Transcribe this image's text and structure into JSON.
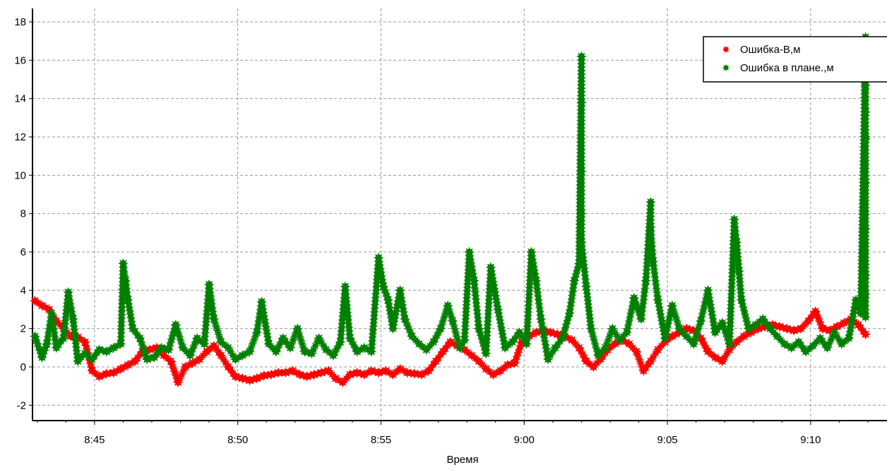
{
  "chart_data": {
    "type": "scatter",
    "title": "",
    "xlabel": "Время",
    "ylabel": "",
    "x_unit": "time (h:mm)",
    "xlim": [
      "8:42:50",
      "9:12:40"
    ],
    "ylim": [
      -2.8,
      18.7
    ],
    "x_ticks": [
      "8:45",
      "8:50",
      "8:55",
      "9:00",
      "9:05",
      "9:10"
    ],
    "y_ticks": [
      -2,
      0,
      2,
      4,
      6,
      8,
      10,
      12,
      14,
      16,
      18
    ],
    "grid": true,
    "legend": "top-right",
    "series": [
      {
        "name": "Ошибка-В,м",
        "color": "#ff0000",
        "points": [
          [
            "8:42:55",
            3.45
          ],
          [
            "8:43:10",
            3.2
          ],
          [
            "8:43:25",
            3.0
          ],
          [
            "8:43:40",
            2.4
          ],
          [
            "8:43:55",
            2.0
          ],
          [
            "8:44:10",
            1.6
          ],
          [
            "8:44:25",
            1.55
          ],
          [
            "8:44:40",
            1.3
          ],
          [
            "8:44:55",
            -0.2
          ],
          [
            "8:45:10",
            -0.5
          ],
          [
            "8:45:25",
            -0.35
          ],
          [
            "8:45:40",
            -0.3
          ],
          [
            "8:45:55",
            -0.1
          ],
          [
            "8:46:10",
            0.1
          ],
          [
            "8:46:25",
            0.3
          ],
          [
            "8:46:40",
            0.8
          ],
          [
            "8:46:55",
            0.9
          ],
          [
            "8:47:10",
            1.0
          ],
          [
            "8:47:25",
            0.6
          ],
          [
            "8:47:40",
            0.3
          ],
          [
            "8:47:55",
            -0.8
          ],
          [
            "8:48:10",
            0.0
          ],
          [
            "8:48:25",
            0.2
          ],
          [
            "8:48:40",
            0.4
          ],
          [
            "8:48:55",
            0.8
          ],
          [
            "8:49:10",
            1.1
          ],
          [
            "8:49:25",
            0.6
          ],
          [
            "8:49:40",
            0.0
          ],
          [
            "8:49:55",
            -0.5
          ],
          [
            "8:50:10",
            -0.6
          ],
          [
            "8:50:25",
            -0.7
          ],
          [
            "8:50:40",
            -0.6
          ],
          [
            "8:50:55",
            -0.45
          ],
          [
            "8:51:10",
            -0.4
          ],
          [
            "8:51:25",
            -0.3
          ],
          [
            "8:51:40",
            -0.3
          ],
          [
            "8:51:55",
            -0.2
          ],
          [
            "8:52:10",
            -0.4
          ],
          [
            "8:52:25",
            -0.5
          ],
          [
            "8:52:40",
            -0.4
          ],
          [
            "8:52:55",
            -0.3
          ],
          [
            "8:53:10",
            -0.2
          ],
          [
            "8:53:25",
            -0.6
          ],
          [
            "8:53:40",
            -0.8
          ],
          [
            "8:53:55",
            -0.4
          ],
          [
            "8:54:10",
            -0.3
          ],
          [
            "8:54:25",
            -0.4
          ],
          [
            "8:54:40",
            -0.2
          ],
          [
            "8:54:55",
            -0.3
          ],
          [
            "8:55:10",
            -0.2
          ],
          [
            "8:55:25",
            -0.4
          ],
          [
            "8:55:40",
            -0.1
          ],
          [
            "8:55:55",
            -0.3
          ],
          [
            "8:56:10",
            -0.35
          ],
          [
            "8:56:25",
            -0.4
          ],
          [
            "8:56:40",
            -0.2
          ],
          [
            "8:56:55",
            0.3
          ],
          [
            "8:57:10",
            0.8
          ],
          [
            "8:57:25",
            1.3
          ],
          [
            "8:57:40",
            1.1
          ],
          [
            "8:57:55",
            0.9
          ],
          [
            "8:58:10",
            0.6
          ],
          [
            "8:58:25",
            0.3
          ],
          [
            "8:58:40",
            -0.1
          ],
          [
            "8:58:55",
            -0.4
          ],
          [
            "8:59:10",
            -0.2
          ],
          [
            "8:59:25",
            0.1
          ],
          [
            "8:59:40",
            0.2
          ],
          [
            "8:59:55",
            1.3
          ],
          [
            "9:00:10",
            1.6
          ],
          [
            "9:00:25",
            1.8
          ],
          [
            "9:00:40",
            1.9
          ],
          [
            "9:00:55",
            1.8
          ],
          [
            "9:01:10",
            1.7
          ],
          [
            "9:01:25",
            1.6
          ],
          [
            "9:01:40",
            1.4
          ],
          [
            "9:01:55",
            1.0
          ],
          [
            "9:02:10",
            0.3
          ],
          [
            "9:02:25",
            0.0
          ],
          [
            "9:02:40",
            0.4
          ],
          [
            "9:02:55",
            0.9
          ],
          [
            "9:03:10",
            1.2
          ],
          [
            "9:03:25",
            1.4
          ],
          [
            "9:03:40",
            1.2
          ],
          [
            "9:03:55",
            0.8
          ],
          [
            "9:04:10",
            -0.2
          ],
          [
            "9:04:25",
            0.3
          ],
          [
            "9:04:40",
            0.9
          ],
          [
            "9:04:55",
            1.3
          ],
          [
            "9:05:10",
            1.6
          ],
          [
            "9:05:25",
            1.8
          ],
          [
            "9:05:40",
            2.0
          ],
          [
            "9:05:55",
            1.9
          ],
          [
            "9:06:10",
            1.5
          ],
          [
            "9:06:25",
            0.8
          ],
          [
            "9:06:40",
            0.5
          ],
          [
            "9:06:55",
            0.3
          ],
          [
            "9:07:10",
            0.9
          ],
          [
            "9:07:25",
            1.3
          ],
          [
            "9:07:40",
            1.6
          ],
          [
            "9:07:55",
            1.8
          ],
          [
            "9:08:10",
            2.0
          ],
          [
            "9:08:25",
            2.1
          ],
          [
            "9:08:40",
            2.2
          ],
          [
            "9:08:55",
            2.1
          ],
          [
            "9:09:10",
            2.0
          ],
          [
            "9:09:25",
            1.9
          ],
          [
            "9:09:40",
            2.0
          ],
          [
            "9:09:55",
            2.4
          ],
          [
            "9:10:10",
            2.9
          ],
          [
            "9:10:25",
            2.0
          ],
          [
            "9:10:40",
            1.9
          ],
          [
            "9:10:55",
            2.1
          ],
          [
            "9:11:10",
            2.3
          ],
          [
            "9:11:25",
            2.5
          ],
          [
            "9:11:40",
            2.2
          ],
          [
            "9:11:55",
            1.7
          ]
        ]
      },
      {
        "name": "Ошибка в плане.,м",
        "color": "#008000",
        "points": [
          [
            "8:42:55",
            1.6
          ],
          [
            "8:43:10",
            0.5
          ],
          [
            "8:43:20",
            1.2
          ],
          [
            "8:43:30",
            2.8
          ],
          [
            "8:43:40",
            1.0
          ],
          [
            "8:43:55",
            1.5
          ],
          [
            "8:44:05",
            3.9
          ],
          [
            "8:44:15",
            2.5
          ],
          [
            "8:44:25",
            0.3
          ],
          [
            "8:44:40",
            0.7
          ],
          [
            "8:44:55",
            0.4
          ],
          [
            "8:45:10",
            0.9
          ],
          [
            "8:45:25",
            0.8
          ],
          [
            "8:45:40",
            1.0
          ],
          [
            "8:45:55",
            1.2
          ],
          [
            "8:46:00",
            5.4
          ],
          [
            "8:46:05",
            4.5
          ],
          [
            "8:46:10",
            3.5
          ],
          [
            "8:46:20",
            2.0
          ],
          [
            "8:46:35",
            1.5
          ],
          [
            "8:46:50",
            0.4
          ],
          [
            "8:47:05",
            0.5
          ],
          [
            "8:47:20",
            1.0
          ],
          [
            "8:47:35",
            0.9
          ],
          [
            "8:47:50",
            2.2
          ],
          [
            "8:48:05",
            1.0
          ],
          [
            "8:48:20",
            0.6
          ],
          [
            "8:48:35",
            1.5
          ],
          [
            "8:48:50",
            1.2
          ],
          [
            "8:49:00",
            4.3
          ],
          [
            "8:49:10",
            2.5
          ],
          [
            "8:49:25",
            1.3
          ],
          [
            "8:49:40",
            1.0
          ],
          [
            "8:49:55",
            0.4
          ],
          [
            "8:50:10",
            0.6
          ],
          [
            "8:50:25",
            0.8
          ],
          [
            "8:50:40",
            1.8
          ],
          [
            "8:50:50",
            3.4
          ],
          [
            "8:51:05",
            1.2
          ],
          [
            "8:51:20",
            0.8
          ],
          [
            "8:51:35",
            1.5
          ],
          [
            "8:51:50",
            1.0
          ],
          [
            "8:52:05",
            2.0
          ],
          [
            "8:52:20",
            0.8
          ],
          [
            "8:52:35",
            0.7
          ],
          [
            "8:52:50",
            1.5
          ],
          [
            "8:53:05",
            0.9
          ],
          [
            "8:53:20",
            0.6
          ],
          [
            "8:53:35",
            1.3
          ],
          [
            "8:53:45",
            4.2
          ],
          [
            "8:53:55",
            1.5
          ],
          [
            "8:54:10",
            0.8
          ],
          [
            "8:54:25",
            1.0
          ],
          [
            "8:54:40",
            0.8
          ],
          [
            "8:54:55",
            5.7
          ],
          [
            "8:55:05",
            4.2
          ],
          [
            "8:55:15",
            3.5
          ],
          [
            "8:55:25",
            2.0
          ],
          [
            "8:55:40",
            4.0
          ],
          [
            "8:55:50",
            2.5
          ],
          [
            "8:56:05",
            1.6
          ],
          [
            "8:56:20",
            1.2
          ],
          [
            "8:56:35",
            0.9
          ],
          [
            "8:56:50",
            1.3
          ],
          [
            "8:57:05",
            2.0
          ],
          [
            "8:57:20",
            3.2
          ],
          [
            "8:57:30",
            2.4
          ],
          [
            "8:57:45",
            1.0
          ],
          [
            "8:57:55",
            1.4
          ],
          [
            "8:58:05",
            6.0
          ],
          [
            "8:58:15",
            4.5
          ],
          [
            "8:58:25",
            2.0
          ],
          [
            "8:58:40",
            0.7
          ],
          [
            "8:58:50",
            5.2
          ],
          [
            "8:59:05",
            3.0
          ],
          [
            "8:59:20",
            1.0
          ],
          [
            "8:59:35",
            1.3
          ],
          [
            "8:59:50",
            1.8
          ],
          [
            "9:00:05",
            1.2
          ],
          [
            "9:00:15",
            6.0
          ],
          [
            "9:00:25",
            4.5
          ],
          [
            "9:00:35",
            2.5
          ],
          [
            "9:00:50",
            0.4
          ],
          [
            "9:01:05",
            1.0
          ],
          [
            "9:01:20",
            1.5
          ],
          [
            "9:01:35",
            2.8
          ],
          [
            "9:01:45",
            4.5
          ],
          [
            "9:01:55",
            5.4
          ],
          [
            "9:02:00",
            16.2
          ],
          [
            "9:02:00",
            13.8
          ],
          [
            "9:02:00",
            10.2
          ],
          [
            "9:02:00",
            8.0
          ],
          [
            "9:02:00",
            6.5
          ],
          [
            "9:02:10",
            4.2
          ],
          [
            "9:02:20",
            2.0
          ],
          [
            "9:02:35",
            0.6
          ],
          [
            "9:02:50",
            1.0
          ],
          [
            "9:03:05",
            2.0
          ],
          [
            "9:03:20",
            1.4
          ],
          [
            "9:03:35",
            1.8
          ],
          [
            "9:03:50",
            3.6
          ],
          [
            "9:04:05",
            2.5
          ],
          [
            "9:04:15",
            4.5
          ],
          [
            "9:04:25",
            8.6
          ],
          [
            "9:04:25",
            7.3
          ],
          [
            "9:04:30",
            5.5
          ],
          [
            "9:04:40",
            3.5
          ],
          [
            "9:04:55",
            1.5
          ],
          [
            "9:05:10",
            3.2
          ],
          [
            "9:05:25",
            2.0
          ],
          [
            "9:05:40",
            1.6
          ],
          [
            "9:05:55",
            1.2
          ],
          [
            "9:06:10",
            2.4
          ],
          [
            "9:06:25",
            4.0
          ],
          [
            "9:06:40",
            1.8
          ],
          [
            "9:06:55",
            2.3
          ],
          [
            "9:07:10",
            1.2
          ],
          [
            "9:07:20",
            7.7
          ],
          [
            "9:07:25",
            6.5
          ],
          [
            "9:07:30",
            5.0
          ],
          [
            "9:07:35",
            3.5
          ],
          [
            "9:07:50",
            2.0
          ],
          [
            "9:08:05",
            2.2
          ],
          [
            "9:08:20",
            2.5
          ],
          [
            "9:08:35",
            2.0
          ],
          [
            "9:08:50",
            1.6
          ],
          [
            "9:09:05",
            1.2
          ],
          [
            "9:09:20",
            1.0
          ],
          [
            "9:09:35",
            1.3
          ],
          [
            "9:09:50",
            0.8
          ],
          [
            "9:10:05",
            1.1
          ],
          [
            "9:10:20",
            1.5
          ],
          [
            "9:10:35",
            1.0
          ],
          [
            "9:10:50",
            1.8
          ],
          [
            "9:11:05",
            1.2
          ],
          [
            "9:11:20",
            1.5
          ],
          [
            "9:11:35",
            3.5
          ],
          [
            "9:11:45",
            2.8
          ],
          [
            "9:11:55",
            17.2
          ],
          [
            "9:11:55",
            14.7
          ],
          [
            "9:11:55",
            13.3
          ],
          [
            "9:11:55",
            12.0
          ],
          [
            "9:11:55",
            11.9
          ],
          [
            "9:11:55",
            9.6
          ],
          [
            "9:11:55",
            7.2
          ],
          [
            "9:11:55",
            4.8
          ],
          [
            "9:11:55",
            3.8
          ],
          [
            "9:11:55",
            2.6
          ]
        ]
      }
    ]
  }
}
